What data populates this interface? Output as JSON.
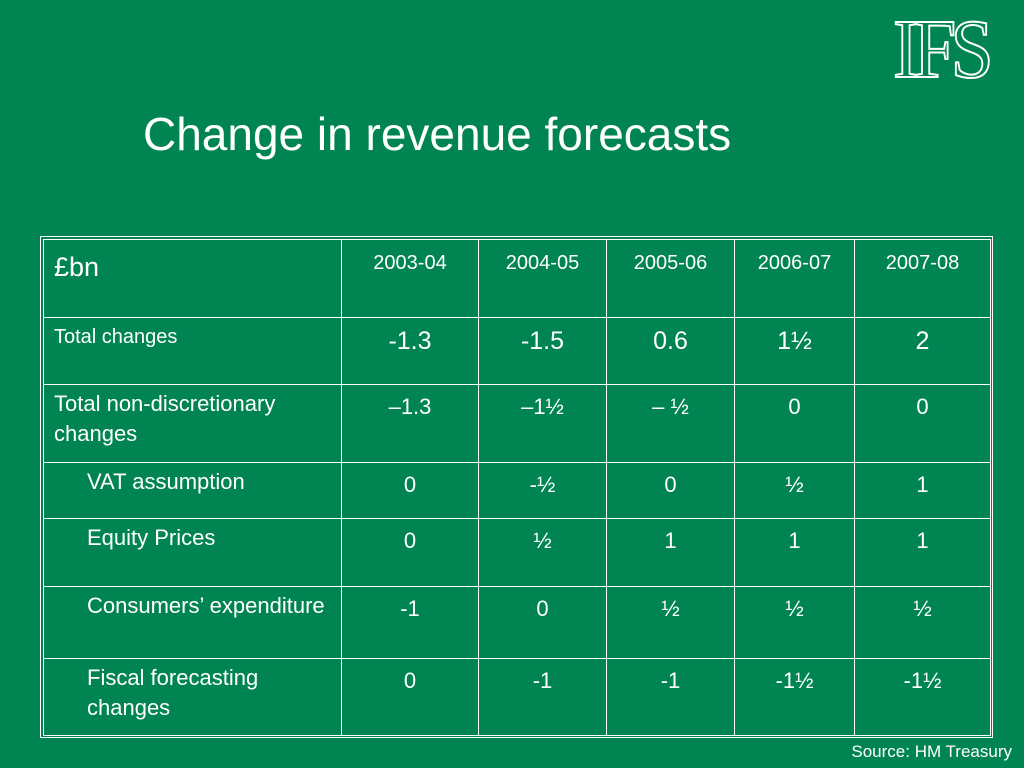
{
  "logo": "IFS",
  "title": "Change in revenue forecasts",
  "table": {
    "corner": "£bn",
    "years": [
      "2003-04",
      "2004-05",
      "2005-06",
      "2006-07",
      "2007-08"
    ],
    "rows": [
      {
        "label": "Total changes",
        "values": [
          "-1.3",
          "-1.5",
          "0.6",
          "1½",
          "2"
        ]
      },
      {
        "label": "Total non-discretionary changes",
        "values": [
          "–1.3",
          "–1½",
          "– ½",
          "0",
          "0"
        ]
      },
      {
        "label": "VAT assumption",
        "values": [
          "0",
          "-½",
          "0",
          "½",
          "1"
        ]
      },
      {
        "label": "Equity Prices",
        "values": [
          "0",
          "½",
          "1",
          "1",
          "1"
        ]
      },
      {
        "label": "Consumers’ expenditure",
        "values": [
          "-1",
          "0",
          "½",
          "½",
          "½"
        ]
      },
      {
        "label": "Fiscal forecasting changes",
        "values": [
          "0",
          "-1",
          "-1",
          "-1½",
          "-1½"
        ]
      }
    ]
  },
  "source": "Source: HM Treasury"
}
